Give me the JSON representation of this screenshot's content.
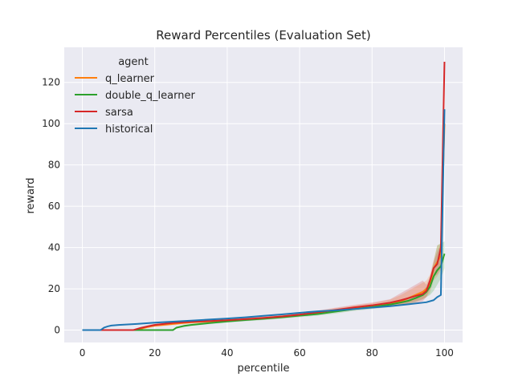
{
  "chart_data": {
    "type": "line",
    "title": "Reward Percentiles (Evaluation Set)",
    "xlabel": "percentile",
    "ylabel": "reward",
    "xlim": [
      -5,
      105
    ],
    "ylim": [
      -6,
      137
    ],
    "xticks": [
      0,
      20,
      40,
      60,
      80,
      100
    ],
    "yticks": [
      0,
      20,
      40,
      60,
      80,
      100,
      120
    ],
    "grid": true,
    "background": "#eaeaf2",
    "legend": {
      "title": "agent",
      "placement": "top-left"
    },
    "series": [
      {
        "name": "q_learner",
        "color": "#ff7f0e",
        "x": [
          0,
          5,
          10,
          15,
          16,
          18,
          20,
          22,
          25,
          30,
          35,
          40,
          45,
          50,
          55,
          60,
          65,
          70,
          75,
          80,
          85,
          88,
          90,
          92,
          94,
          95,
          96,
          97,
          98,
          99,
          100
        ],
        "y": [
          0,
          0,
          0,
          0,
          0.6,
          1.5,
          2.2,
          2.5,
          3.0,
          3.8,
          4.2,
          4.8,
          5.2,
          5.8,
          6.6,
          7.4,
          8.3,
          9.6,
          10.8,
          11.8,
          13.0,
          14.0,
          15.5,
          17.0,
          18.5,
          20.0,
          22.0,
          30.0,
          33.0,
          36.0,
          100.0
        ],
        "band_upper": [
          0,
          0,
          0,
          0,
          1.0,
          2.2,
          3.0,
          3.2,
          3.6,
          4.5,
          5.0,
          5.6,
          6.0,
          6.6,
          7.4,
          8.2,
          9.2,
          10.6,
          11.9,
          13.0,
          14.8,
          17.0,
          19.0,
          21.0,
          23.0,
          24.0,
          27.0,
          34.0,
          41.0,
          42.0,
          100.0
        ],
        "band_lower": [
          0,
          0,
          0,
          0,
          0.2,
          0.9,
          1.5,
          1.8,
          2.4,
          3.1,
          3.5,
          4.0,
          4.5,
          5.0,
          5.8,
          6.6,
          7.4,
          8.7,
          9.8,
          10.7,
          11.5,
          12.0,
          13.0,
          14.0,
          15.0,
          16.0,
          18.0,
          24.0,
          26.0,
          29.0,
          100.0
        ]
      },
      {
        "name": "double_q_learner",
        "color": "#2ca02c",
        "x": [
          0,
          5,
          10,
          15,
          20,
          25,
          26,
          28,
          30,
          35,
          40,
          45,
          50,
          55,
          60,
          65,
          70,
          75,
          80,
          85,
          88,
          90,
          92,
          94,
          95,
          96,
          97,
          98,
          99,
          100
        ],
        "y": [
          0,
          0,
          0,
          0,
          0,
          0,
          1.2,
          2.0,
          2.5,
          3.4,
          4.2,
          4.9,
          5.5,
          6.2,
          7.0,
          7.8,
          9.0,
          10.2,
          11.2,
          12.4,
          13.4,
          14.2,
          15.5,
          17.0,
          18.5,
          21.0,
          26.0,
          29.0,
          31.0,
          37.0
        ],
        "band_upper": [
          0,
          0,
          0,
          0,
          0,
          0,
          1.6,
          2.5,
          3.0,
          3.9,
          4.8,
          5.5,
          6.1,
          6.9,
          7.7,
          8.6,
          9.9,
          11.1,
          12.2,
          13.6,
          14.8,
          15.8,
          17.5,
          19.0,
          21.0,
          25.0,
          33.0,
          41.0,
          42.0,
          43.0
        ],
        "band_lower": [
          0,
          0,
          0,
          0,
          0,
          0,
          0.8,
          1.5,
          2.0,
          2.9,
          3.6,
          4.3,
          4.9,
          5.5,
          6.3,
          7.0,
          8.1,
          9.3,
          10.2,
          11.2,
          12.0,
          12.6,
          13.5,
          15.0,
          16.0,
          17.0,
          19.0,
          22.0,
          25.0,
          30.0
        ]
      },
      {
        "name": "sarsa",
        "color": "#d62728",
        "x": [
          0,
          5,
          10,
          14,
          16,
          18,
          20,
          25,
          30,
          35,
          40,
          45,
          50,
          55,
          60,
          65,
          70,
          75,
          80,
          85,
          88,
          90,
          92,
          94,
          95,
          96,
          97,
          98,
          99,
          100
        ],
        "y": [
          0,
          0,
          0,
          0,
          1.0,
          1.8,
          2.5,
          3.5,
          4.0,
          4.4,
          4.8,
          5.3,
          5.9,
          6.6,
          7.5,
          8.6,
          9.8,
          11.0,
          12.0,
          13.3,
          14.5,
          15.5,
          16.5,
          17.5,
          19.0,
          24.0,
          30.0,
          32.0,
          40.0,
          130.0
        ],
        "band_upper": [
          0,
          0,
          0,
          0,
          1.5,
          2.4,
          3.2,
          4.1,
          4.6,
          5.0,
          5.4,
          5.9,
          6.5,
          7.3,
          8.3,
          9.5,
          10.9,
          12.2,
          13.4,
          15.0,
          18.0,
          20.0,
          22.0,
          24.0,
          22.0,
          26.0,
          33.0,
          38.0,
          42.0,
          130.0
        ],
        "band_lower": [
          0,
          0,
          0,
          0,
          0.6,
          1.2,
          1.8,
          2.9,
          3.4,
          3.8,
          4.2,
          4.7,
          5.3,
          5.9,
          6.7,
          7.7,
          8.7,
          9.8,
          10.6,
          11.6,
          12.0,
          12.5,
          13.0,
          14.0,
          16.0,
          20.0,
          26.0,
          27.0,
          30.0,
          130.0
        ]
      },
      {
        "name": "historical",
        "color": "#1f77b4",
        "x": [
          0,
          5,
          5.5,
          6,
          7,
          8,
          10,
          15,
          20,
          25,
          30,
          35,
          40,
          45,
          50,
          55,
          60,
          65,
          70,
          75,
          80,
          85,
          90,
          95,
          97,
          98,
          99,
          100
        ],
        "y": [
          0,
          0,
          0.6,
          1.2,
          1.8,
          2.2,
          2.5,
          3.0,
          3.6,
          4.1,
          4.6,
          5.1,
          5.6,
          6.2,
          6.9,
          7.6,
          8.4,
          9.1,
          9.6,
          10.2,
          10.9,
          11.6,
          12.5,
          13.5,
          14.5,
          16.0,
          17.0,
          107.0
        ]
      }
    ]
  }
}
